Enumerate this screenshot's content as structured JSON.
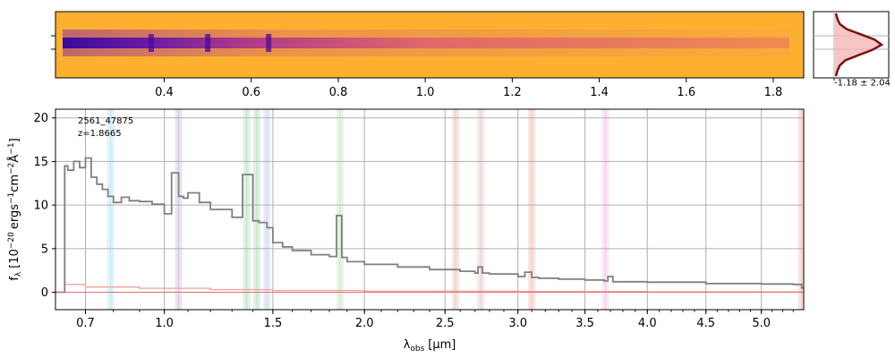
{
  "chart_data": [
    {
      "type": "heatmap",
      "panel": "2d-spectrum",
      "colormap": "plasma",
      "xlim": [
        0.15,
        1.87
      ],
      "x_ticks": [
        "0.4",
        "0.6",
        "0.8",
        "1.0",
        "1.2",
        "1.4",
        "1.6",
        "1.8"
      ],
      "x_tick_values": [
        0.4,
        0.6,
        0.8,
        1.0,
        1.2,
        1.4,
        1.6,
        1.8
      ],
      "trace_features": [
        0.37,
        0.5,
        0.64
      ]
    },
    {
      "type": "line",
      "panel": "profile",
      "annotation": "-1.18 ± 2.04",
      "profile": [
        0.02,
        0.05,
        0.1,
        0.25,
        0.55,
        0.85,
        1.0,
        0.8,
        0.5,
        0.22,
        0.1,
        0.05,
        0.02
      ],
      "line_color": "#7f1010",
      "fill_color": "#f4b6b6"
    },
    {
      "type": "line",
      "panel": "1d-spectrum",
      "label": "2561_47875",
      "redshift": "z=1.8665",
      "ylabel_main": "f",
      "ylabel_sub": "λ",
      "ylabel_unit": "[10",
      "ylabel_exp": "−20",
      "ylabel_rest": "ergs",
      "ylabel_exp2": "−1",
      "ylabel_cm": "cm",
      "ylabel_exp3": "−2",
      "ylabel_angstrom": "Å",
      "ylabel_exp4": "−1",
      "ylabel_close": "]",
      "xlabel_main": "λ",
      "xlabel_sub": "obs",
      "xlabel_unit": "[μm]",
      "ylim": [
        -2,
        21
      ],
      "y_ticks": [
        "0",
        "5",
        "10",
        "15",
        "20"
      ],
      "y_tick_values": [
        0,
        5,
        10,
        15,
        20
      ],
      "x_ticks": [
        "0.7",
        "1.0",
        "1.5",
        "2.0",
        "2.5",
        "3.0",
        "3.5",
        "4.0",
        "4.5",
        "5.0"
      ],
      "x_tick_values": [
        0.7,
        1.0,
        1.5,
        2.0,
        2.5,
        3.0,
        3.5,
        4.0,
        4.5,
        5.0
      ],
      "spectrum": {
        "color": "#808080",
        "x": [
          0.6,
          0.62,
          0.63,
          0.64,
          0.66,
          0.68,
          0.7,
          0.72,
          0.74,
          0.76,
          0.78,
          0.8,
          0.83,
          0.86,
          0.9,
          0.95,
          1.0,
          1.03,
          1.06,
          1.08,
          1.1,
          1.15,
          1.2,
          1.3,
          1.35,
          1.4,
          1.43,
          1.47,
          1.5,
          1.55,
          1.6,
          1.7,
          1.8,
          1.84,
          1.87,
          1.9,
          2.0,
          2.2,
          2.4,
          2.6,
          2.7,
          2.72,
          2.75,
          2.8,
          3.0,
          3.05,
          3.1,
          3.15,
          3.3,
          3.5,
          3.65,
          3.68,
          3.72,
          4.0,
          4.5,
          5.0,
          5.3,
          5.38,
          5.4
        ],
        "y": [
          0,
          0,
          14.5,
          14.0,
          15.0,
          14.3,
          15.4,
          13.2,
          12.4,
          11.8,
          11.0,
          10.3,
          10.9,
          10.5,
          10.4,
          10.1,
          9.0,
          13.7,
          11.0,
          10.8,
          11.4,
          10.3,
          9.5,
          8.6,
          13.5,
          8.2,
          8.0,
          7.4,
          5.7,
          5.2,
          4.8,
          4.3,
          4.1,
          8.8,
          4.0,
          3.5,
          3.2,
          2.9,
          2.6,
          2.4,
          2.2,
          2.9,
          2.2,
          2.1,
          1.8,
          2.3,
          1.7,
          1.6,
          1.5,
          1.4,
          1.3,
          1.8,
          1.2,
          1.15,
          1.0,
          0.95,
          0.9,
          0.5,
          0.45
        ]
      },
      "error": {
        "color": "#f4a0a0",
        "x": [
          0.62,
          0.63,
          0.7,
          0.9,
          1.2,
          1.5,
          2.0,
          3.0,
          4.0,
          5.0,
          5.4
        ],
        "y": [
          0,
          0.9,
          0.6,
          0.45,
          0.3,
          0.2,
          0.12,
          0.08,
          0.05,
          0.04,
          0.03
        ]
      },
      "line_bands": [
        {
          "x": 0.79,
          "color": "#a8e0e8"
        },
        {
          "x": 1.06,
          "color": "#c9b0d8"
        },
        {
          "x": 1.37,
          "color": "#a8d8b0"
        },
        {
          "x": 1.42,
          "color": "#a8d8b0"
        },
        {
          "x": 1.47,
          "color": "#b8c8e8"
        },
        {
          "x": 1.86,
          "color": "#b8e0b8"
        },
        {
          "x": 2.57,
          "color": "#e0b8b0"
        },
        {
          "x": 2.74,
          "color": "#e0c0b8"
        },
        {
          "x": 3.1,
          "color": "#f4b0a0"
        },
        {
          "x": 3.66,
          "color": "#f0b8e0"
        },
        {
          "x": 5.38,
          "color": "#f4b0a0"
        }
      ]
    }
  ]
}
